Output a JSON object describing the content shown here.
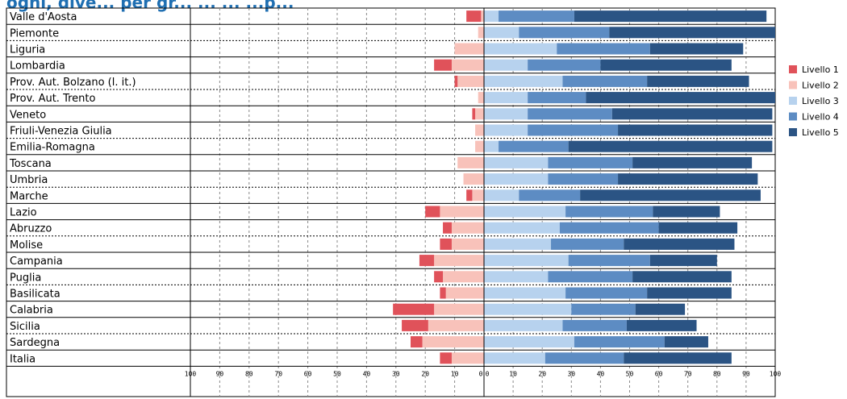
{
  "title": "ogni, dive... per gr... ... ... ...p...",
  "chart_data": {
    "type": "bar",
    "stacked": "diverging",
    "categories": [
      "Valle d'Aosta",
      "Piemonte",
      "Liguria",
      "Lombardia",
      "Prov. Aut. Bolzano (l. it.)",
      "Prov. Aut. Trento",
      "Veneto",
      "Friuli-Venezia Giulia",
      "Emilia-Romagna",
      "Toscana",
      "Umbria",
      "Marche",
      "Lazio",
      "Abruzzo",
      "Molise",
      "Campania",
      "Puglia",
      "Basilicata",
      "Calabria",
      "Sicilia",
      "Sardegna",
      "Italia"
    ],
    "series": [
      {
        "name": "Livello 1",
        "color": "#e0525a",
        "values": [
          5,
          0,
          0,
          6,
          1,
          0,
          1,
          0,
          0,
          0,
          0,
          2,
          5,
          3,
          4,
          5,
          3,
          2,
          14,
          9,
          4,
          4
        ]
      },
      {
        "name": "Livello 2",
        "color": "#f8c2ba",
        "values": [
          1,
          2,
          10,
          11,
          9,
          2,
          3,
          3,
          3,
          9,
          7,
          4,
          15,
          11,
          11,
          17,
          14,
          13,
          17,
          19,
          21,
          11
        ]
      },
      {
        "name": "Livello 3",
        "color": "#b7d2ee",
        "values": [
          5,
          12,
          25,
          15,
          27,
          15,
          15,
          15,
          5,
          22,
          22,
          12,
          28,
          26,
          23,
          29,
          22,
          28,
          30,
          27,
          31,
          21
        ]
      },
      {
        "name": "Livello 4",
        "color": "#5d8cc3",
        "values": [
          26,
          31,
          32,
          25,
          29,
          20,
          29,
          31,
          24,
          29,
          24,
          21,
          30,
          34,
          25,
          28,
          29,
          28,
          22,
          22,
          31,
          27
        ]
      },
      {
        "name": "Livello 5",
        "color": "#2b5484",
        "values": [
          66,
          57,
          32,
          45,
          35,
          65,
          55,
          53,
          70,
          41,
          48,
          62,
          23,
          27,
          38,
          23,
          34,
          29,
          17,
          24,
          15,
          37
        ]
      }
    ],
    "x_ticks": [
      "100",
      "90",
      "80",
      "70",
      "60",
      "50",
      "40",
      "30",
      "20",
      "10",
      "0",
      "0",
      "10",
      "20",
      "30",
      "40",
      "50",
      "60",
      "70",
      "80",
      "90",
      "100"
    ],
    "xlim_left": [
      100,
      0
    ],
    "xlim_right": [
      0,
      100
    ],
    "legend_position": "right",
    "grid": "vertical dashed"
  }
}
